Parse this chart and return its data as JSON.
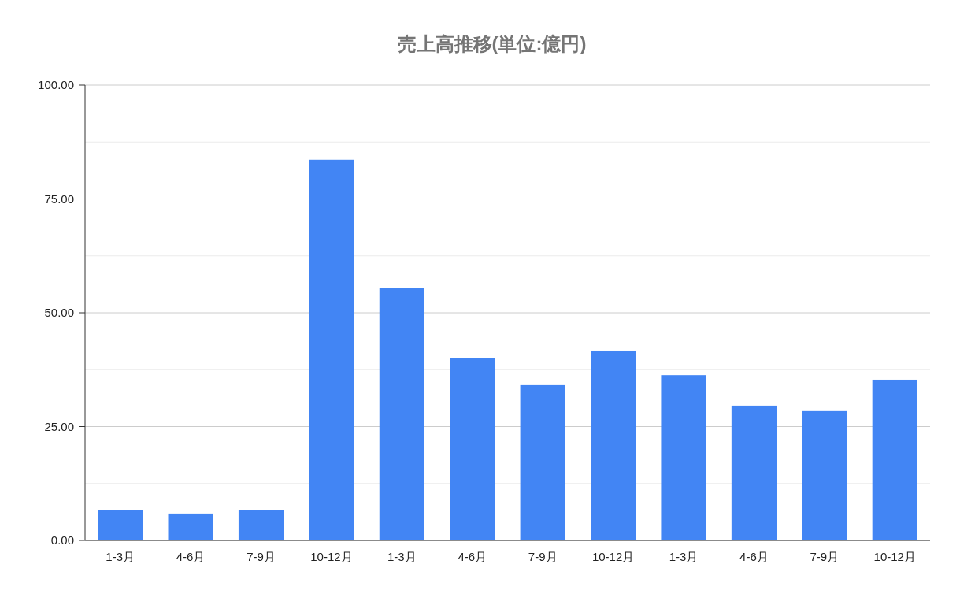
{
  "chart_data": {
    "type": "bar",
    "title": "売上高推移(単位:億円)",
    "categories": [
      "1-3月",
      "4-6月",
      "7-9月",
      "10-12月",
      "1-3月",
      "4-6月",
      "7-9月",
      "10-12月",
      "1-3月",
      "4-6月",
      "7-9月",
      "10-12月"
    ],
    "series": [
      {
        "color": "#4285f4",
        "values": [
          6.7,
          5.9,
          6.7,
          83.6,
          55.4,
          40.0,
          34.1,
          41.7,
          36.3,
          29.6,
          28.4,
          35.3
        ]
      }
    ],
    "ylim": [
      0,
      100
    ],
    "yticks": [
      {
        "value": 0,
        "label": "0.00"
      },
      {
        "value": 12.5,
        "label": null
      },
      {
        "value": 25,
        "label": "25.00"
      },
      {
        "value": 37.5,
        "label": null
      },
      {
        "value": 50,
        "label": "50.00"
      },
      {
        "value": 62.5,
        "label": null
      },
      {
        "value": 75,
        "label": "75.00"
      },
      {
        "value": 87.5,
        "label": null
      },
      {
        "value": 100,
        "label": "100.00"
      }
    ],
    "grid": "y"
  }
}
